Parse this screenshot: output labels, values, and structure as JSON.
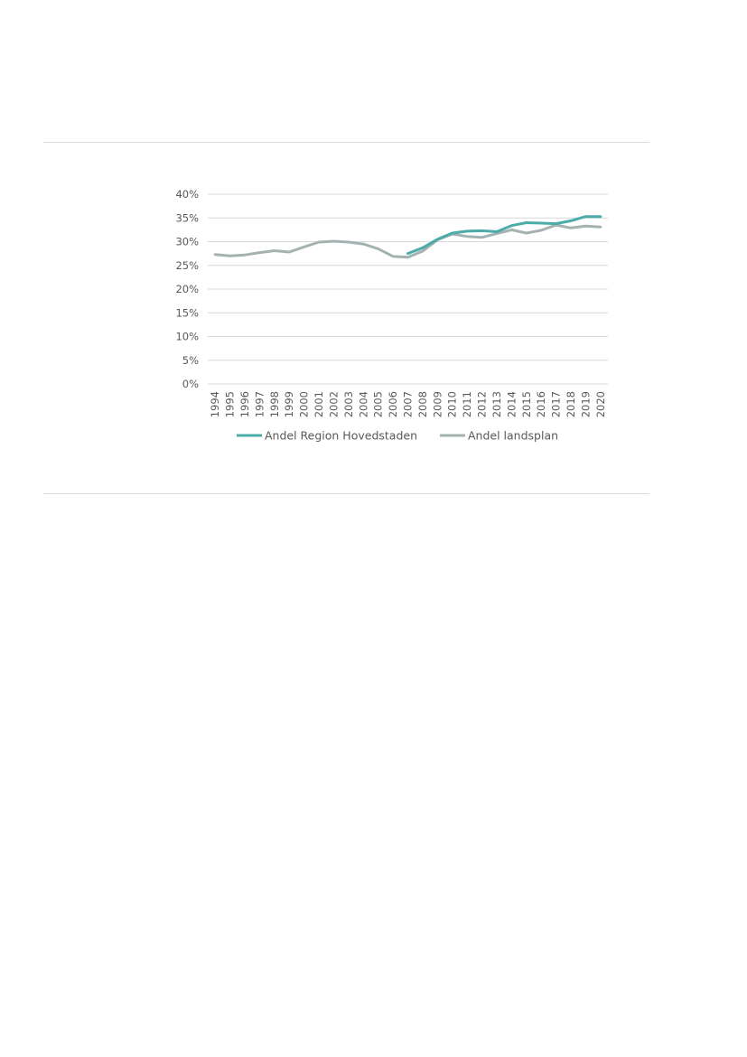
{
  "chart_data": {
    "type": "line",
    "title": "",
    "xlabel": "",
    "ylabel": "",
    "x": [
      "1994",
      "1995",
      "1996",
      "1997",
      "1998",
      "1999",
      "2000",
      "2001",
      "2002",
      "2003",
      "2004",
      "2005",
      "2006",
      "2007",
      "2008",
      "2009",
      "2010",
      "2011",
      "2012",
      "2013",
      "2014",
      "2015",
      "2016",
      "2017",
      "2018",
      "2019",
      "2020"
    ],
    "y_ticks": [
      0,
      5,
      10,
      15,
      20,
      25,
      30,
      35,
      40
    ],
    "y_tick_labels": [
      "0%",
      "5%",
      "10%",
      "15%",
      "20%",
      "25%",
      "30%",
      "35%",
      "40%"
    ],
    "ylim": [
      0,
      40
    ],
    "grid": "horizontal",
    "legend_position": "bottom",
    "series": [
      {
        "name": "Andel Region Hovedstaden",
        "color": "#4bacaa",
        "values": [
          null,
          null,
          null,
          null,
          null,
          null,
          null,
          null,
          null,
          null,
          null,
          null,
          null,
          27.5,
          28.7,
          30.5,
          31.8,
          32.2,
          32.3,
          32.1,
          33.4,
          34.0,
          33.9,
          33.8,
          34.4,
          35.3,
          35.3
        ]
      },
      {
        "name": "Andel landsplan",
        "color": "#a5b2b2",
        "values": [
          27.3,
          27.0,
          27.2,
          27.7,
          28.1,
          27.8,
          28.9,
          29.9,
          30.1,
          29.9,
          29.5,
          28.5,
          26.9,
          26.7,
          28.0,
          30.4,
          31.6,
          31.1,
          30.9,
          31.7,
          32.5,
          31.8,
          32.4,
          33.5,
          32.9,
          33.3,
          33.1
        ]
      }
    ]
  }
}
